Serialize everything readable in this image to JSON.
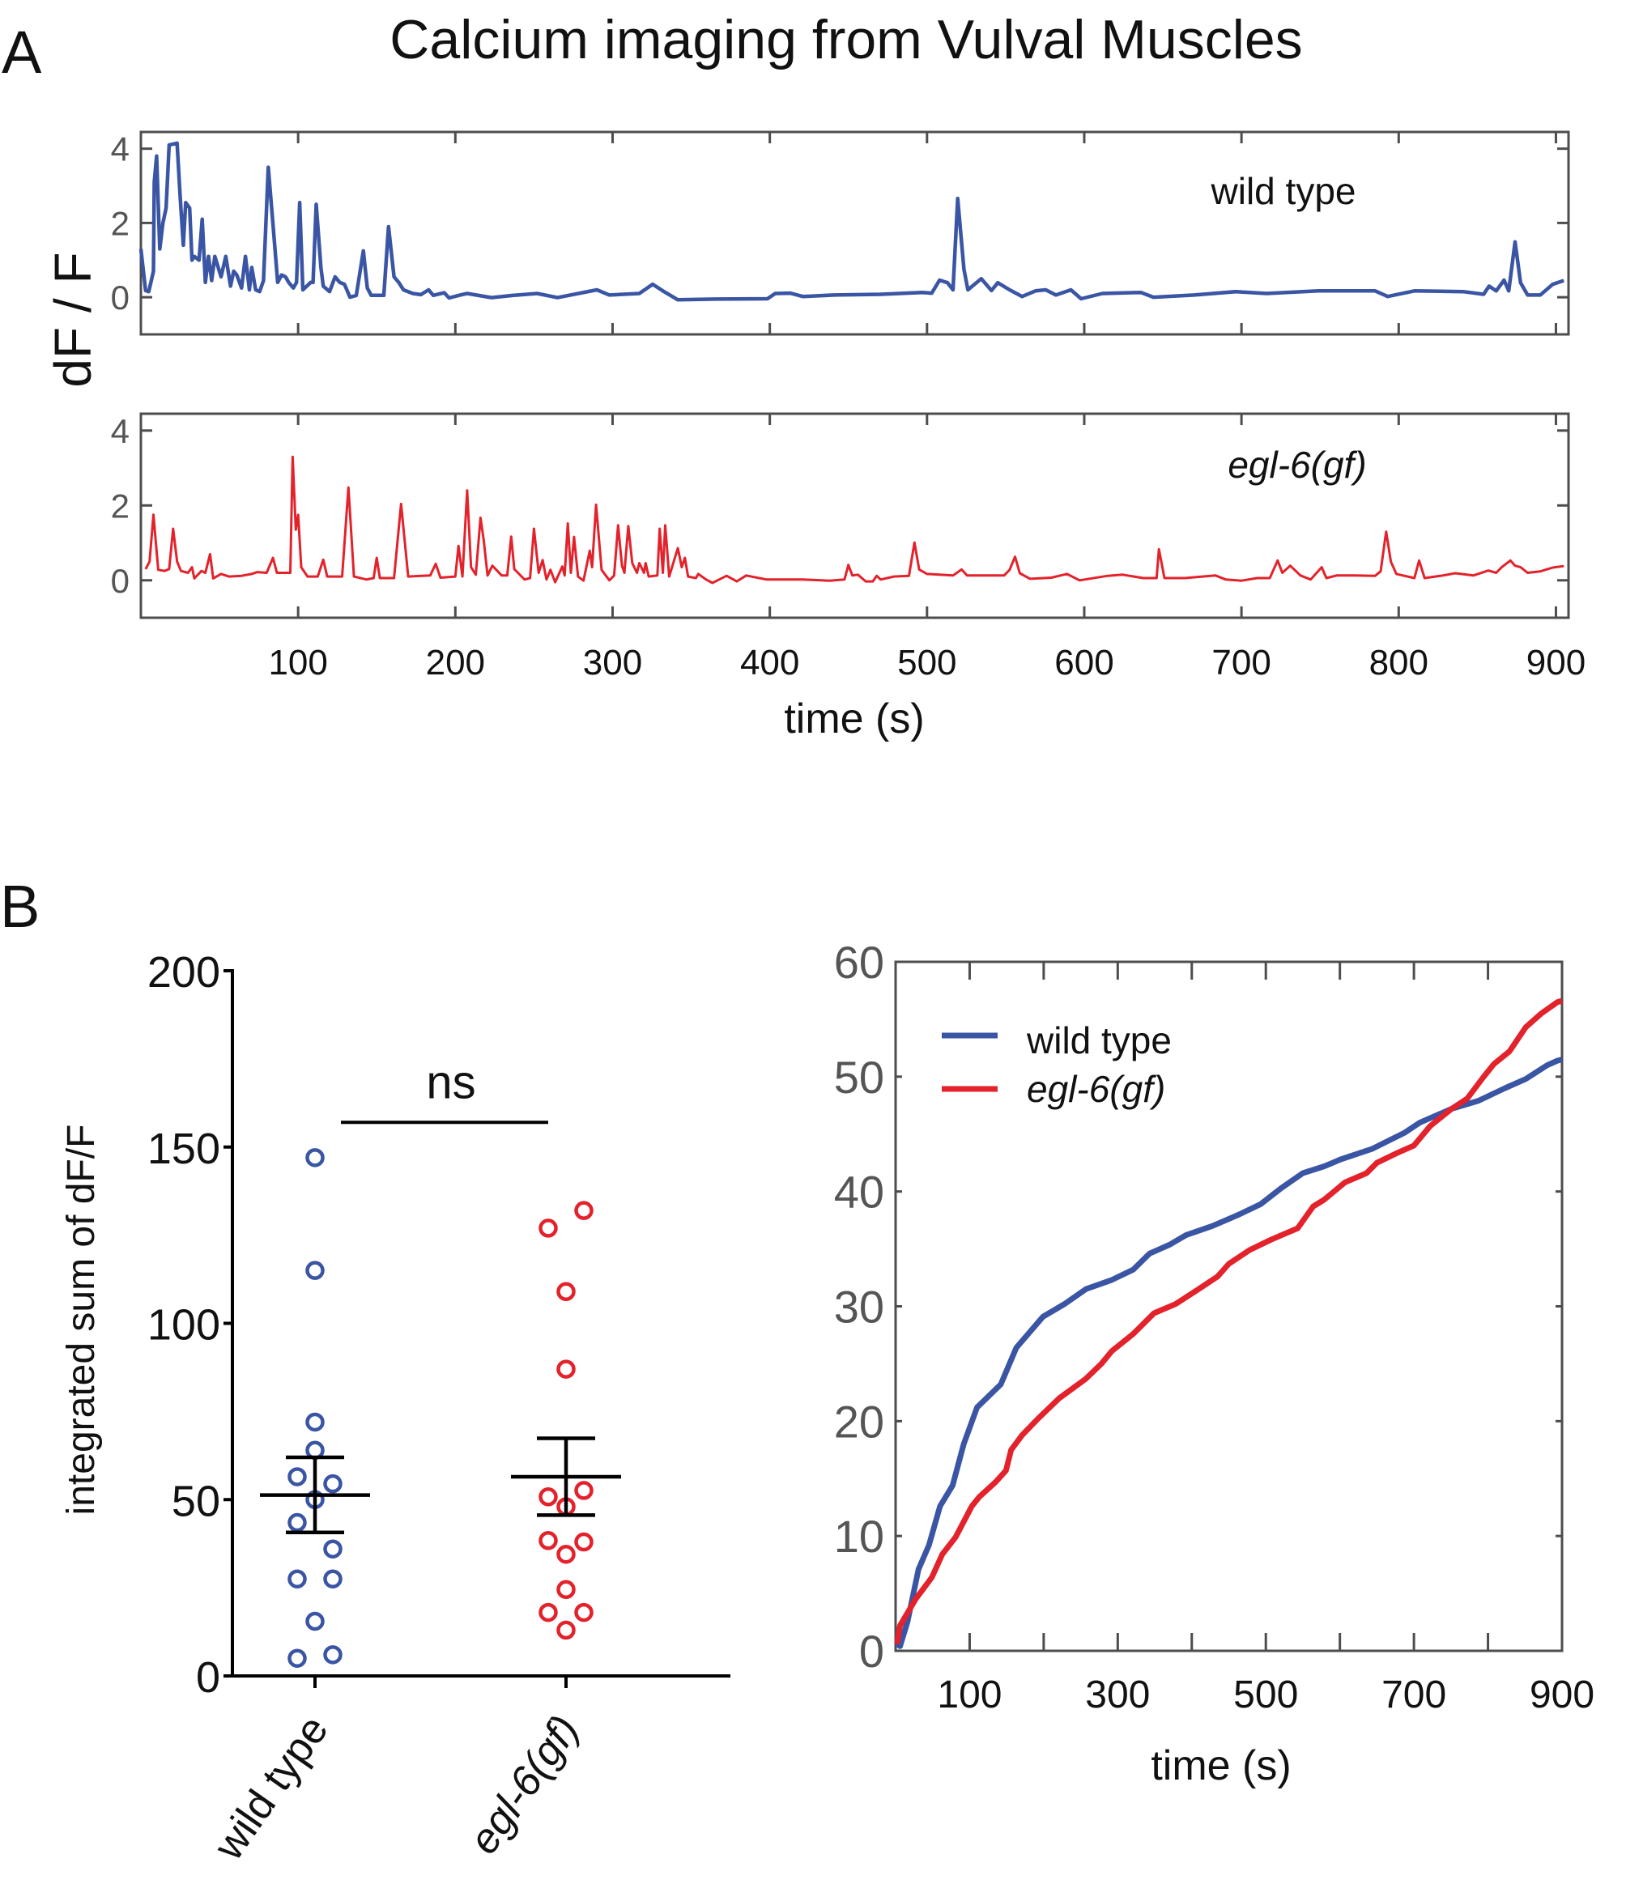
{
  "figure": {
    "panel_a_letter": "A",
    "panel_b_letter": "B",
    "title": "Calcium imaging from Vulval Muscles"
  },
  "colors": {
    "wild_type": "#3a55a4",
    "egl6": "#e3222b",
    "axis": "#4d4d4d",
    "text": "#111111"
  },
  "chart_data": [
    {
      "id": "panel-a-wild-type",
      "type": "line",
      "title": "",
      "annotation": "wild type",
      "ylabel": "dF / F",
      "xlabel": "",
      "xlim": [
        0,
        908
      ],
      "ylim": [
        -1,
        4.45
      ],
      "yticks": [
        0,
        2,
        4
      ],
      "xticks": [
        100,
        200,
        300,
        400,
        500,
        600,
        700,
        800,
        900
      ],
      "xtick_labels_shown": false,
      "grid": false,
      "series": [
        {
          "name": "wild type",
          "x": [
            0,
            3,
            5,
            8,
            8.5,
            10,
            12,
            14,
            16,
            18,
            23,
            25,
            27,
            28.5,
            31,
            32.5,
            34,
            37,
            39,
            41,
            43,
            45,
            47,
            51,
            54,
            57,
            59,
            61,
            64,
            66.5,
            69,
            70.5,
            73,
            75.5,
            78,
            81,
            84.5,
            87,
            89.5,
            92,
            94,
            97,
            99,
            101,
            103,
            108,
            109.5,
            111.5,
            114.5,
            116,
            120,
            123.5,
            126.5,
            129.5,
            133,
            137,
            141.5,
            144,
            146.5,
            151,
            154.5,
            157.5,
            161,
            164,
            167,
            173,
            178,
            183,
            186,
            193,
            196,
            203,
            207.5,
            223,
            237,
            252,
            265,
            290,
            298,
            317,
            325.5,
            332,
            341.5,
            366,
            398.5,
            403.5,
            413,
            421,
            441,
            470.5,
            497,
            503,
            508,
            513,
            516.5,
            519.5,
            523.5,
            526,
            534.5,
            541,
            545,
            552.5,
            560.5,
            569,
            575.5,
            582,
            591.5,
            598,
            611.5,
            636,
            644,
            670,
            696.5,
            716,
            749,
            785,
            793,
            810,
            841,
            854,
            857.5,
            862,
            867,
            870,
            874,
            877.5,
            882,
            890,
            898,
            905
          ],
          "y": [
            1.3,
            0.18,
            0.15,
            0.7,
            3.1,
            3.8,
            1.3,
            2.0,
            2.4,
            4.1,
            4.15,
            2.7,
            1.4,
            2.55,
            2.4,
            1.0,
            1.1,
            1.0,
            2.1,
            0.4,
            1.1,
            0.45,
            1.1,
            0.55,
            1.1,
            0.3,
            0.7,
            0.6,
            0.25,
            1.1,
            0.2,
            0.8,
            0.2,
            0.15,
            0.45,
            3.5,
            1.7,
            0.4,
            0.6,
            0.55,
            0.4,
            0.25,
            0.4,
            2.55,
            0.2,
            0.4,
            0.4,
            2.5,
            0.8,
            0.3,
            0.15,
            0.55,
            0.4,
            0.35,
            0.0,
            0.05,
            1.25,
            0.25,
            0.05,
            0.05,
            0.05,
            1.9,
            0.55,
            0.4,
            0.2,
            0.1,
            0.07,
            0.2,
            0.05,
            0.12,
            -0.02,
            0.06,
            0.1,
            -0.01,
            0.05,
            0.1,
            -0.01,
            0.2,
            0.06,
            0.1,
            0.35,
            0.17,
            -0.07,
            -0.05,
            -0.04,
            0.1,
            0.11,
            0.02,
            0.06,
            0.08,
            0.13,
            0.11,
            0.46,
            0.39,
            0.2,
            2.66,
            0.75,
            0.2,
            0.5,
            0.18,
            0.39,
            0.2,
            0.02,
            0.17,
            0.2,
            0.06,
            0.2,
            -0.04,
            0.1,
            0.13,
            0.0,
            0.06,
            0.15,
            0.1,
            0.17,
            0.17,
            0.02,
            0.17,
            0.15,
            0.08,
            0.3,
            0.17,
            0.46,
            0.17,
            1.49,
            0.39,
            0.06,
            0.06,
            0.35,
            0.45
          ]
        }
      ]
    },
    {
      "id": "panel-a-egl6",
      "type": "line",
      "title": "",
      "annotation": "egl-6(gf)",
      "ylabel": "dF / F",
      "xlabel": "time (s)",
      "xlim": [
        0,
        908
      ],
      "ylim": [
        -1,
        4.45
      ],
      "yticks": [
        0,
        2,
        4
      ],
      "xticks": [
        100,
        200,
        300,
        400,
        500,
        600,
        700,
        800,
        900
      ],
      "xtick_labels": [
        "100",
        "200",
        "300",
        "400",
        "500",
        "600",
        "700",
        "800",
        "900"
      ],
      "grid": false,
      "series": [
        {
          "name": "egl-6(gf)",
          "x": [
            3,
            5.5,
            8,
            11,
            15,
            18,
            20.5,
            23,
            25.5,
            30,
            32.5,
            34,
            38.5,
            41,
            44,
            46,
            51,
            56,
            64,
            70.5,
            74,
            80,
            84,
            86.5,
            95,
            96.5,
            98.5,
            100,
            102,
            106,
            112.5,
            116,
            118.5,
            128,
            132,
            135.5,
            143.5,
            148,
            150,
            152,
            161,
            165.5,
            170,
            184,
            187.5,
            190.5,
            200,
            202,
            204.5,
            207.5,
            210,
            213,
            216,
            218,
            220.5,
            223.5,
            229.5,
            233,
            235.5,
            237.5,
            244,
            247.5,
            250,
            253,
            255.5,
            258,
            260.5,
            263.5,
            268,
            269.5,
            271.5,
            273.5,
            275.5,
            278,
            281.5,
            285.5,
            287,
            289.5,
            293,
            298,
            301,
            303.5,
            306,
            307.5,
            310,
            312.5,
            315.5,
            317,
            320,
            321,
            323,
            328.5,
            330,
            332,
            333.5,
            336,
            341.5,
            344,
            346,
            348,
            353,
            354.5,
            359.5,
            363.5,
            372.5,
            379,
            385,
            398,
            411,
            421,
            438,
            447.5,
            450,
            452.5,
            456,
            461,
            465.5,
            468,
            470.5,
            479,
            488.5,
            492,
            495,
            500,
            516.5,
            522,
            525.5,
            549,
            552.5,
            556,
            559,
            565.5,
            579,
            589,
            597,
            615,
            624.5,
            637.5,
            646,
            647.5,
            651,
            664,
            683.5,
            690,
            700,
            710,
            718,
            723,
            726,
            731,
            737.5,
            744,
            751,
            754,
            760.5,
            772,
            785,
            788.5,
            792,
            795,
            798.5,
            810,
            813,
            816.5,
            828,
            836,
            847.5,
            857,
            862,
            865.5,
            871,
            874,
            877.5,
            882,
            890,
            898,
            905
          ],
          "y": [
            0.3,
            0.5,
            1.75,
            0.28,
            0.25,
            0.3,
            1.38,
            0.5,
            0.25,
            0.2,
            0.35,
            0.05,
            0.25,
            0.2,
            0.7,
            0.05,
            0.17,
            0.1,
            0.12,
            0.17,
            0.22,
            0.2,
            0.6,
            0.2,
            0.2,
            3.3,
            1.35,
            1.75,
            0.35,
            0.1,
            0.1,
            0.55,
            0.1,
            0.1,
            2.48,
            0.1,
            0.02,
            0.06,
            0.6,
            0.06,
            0.06,
            2.04,
            0.1,
            0.13,
            0.44,
            0.07,
            0.1,
            0.92,
            0.1,
            2.4,
            0.35,
            0.15,
            1.67,
            1.08,
            0.13,
            0.39,
            0.13,
            0.13,
            1.17,
            0.3,
            0.02,
            0.06,
            1.38,
            0.2,
            0.54,
            0.02,
            0.28,
            -0.05,
            0.37,
            0.13,
            1.52,
            0.2,
            1.16,
            0.1,
            -0.01,
            0.79,
            0.35,
            2.02,
            0.28,
            0.0,
            0.13,
            1.47,
            0.39,
            0.2,
            1.45,
            0.46,
            0.2,
            0.46,
            0.2,
            0.46,
            0.1,
            0.13,
            1.38,
            0.2,
            1.47,
            0.1,
            0.86,
            0.35,
            0.6,
            0.1,
            0.06,
            0.17,
            0.02,
            -0.07,
            0.12,
            -0.03,
            0.13,
            0.02,
            0.02,
            0.02,
            -0.01,
            0.02,
            0.41,
            0.13,
            0.15,
            -0.03,
            -0.03,
            0.12,
            0.02,
            0.1,
            0.12,
            1.01,
            0.29,
            0.17,
            0.13,
            0.29,
            0.13,
            0.13,
            0.28,
            0.63,
            0.19,
            0.04,
            0.07,
            0.17,
            0.0,
            0.12,
            0.15,
            0.06,
            0.06,
            0.83,
            0.06,
            0.06,
            0.13,
            0.02,
            -0.01,
            0.06,
            0.06,
            0.53,
            0.2,
            0.39,
            0.13,
            0.02,
            0.35,
            0.06,
            0.13,
            0.13,
            0.12,
            0.24,
            1.3,
            0.5,
            0.17,
            0.06,
            0.53,
            0.06,
            0.13,
            0.19,
            0.13,
            0.26,
            0.2,
            0.35,
            0.53,
            0.39,
            0.35,
            0.2,
            0.24,
            0.34,
            0.38
          ]
        }
      ]
    },
    {
      "id": "panel-b-scatter",
      "type": "scatter",
      "title": "",
      "ylabel": "integrated sum of dF/F",
      "xlabel": "",
      "categories": [
        "wild type",
        "egl-6(gf)"
      ],
      "category_styles": [
        "normal",
        "italic"
      ],
      "ylim": [
        0,
        200
      ],
      "yticks": [
        0,
        50,
        100,
        150,
        200
      ],
      "grid": false,
      "significance": {
        "label": "ns",
        "between": [
          "wild type",
          "egl-6(gf)"
        ],
        "y": 157
      },
      "series": [
        {
          "name": "wild type",
          "values": [
            147,
            115,
            72,
            64,
            56.5,
            54.5,
            50,
            43.5,
            36,
            27.5,
            27.5,
            15.5,
            6,
            5
          ],
          "jitter": [
            0,
            0,
            0,
            0,
            -1,
            1,
            0,
            -1,
            1,
            -1,
            1,
            0,
            1,
            -1
          ],
          "mean": 51.3,
          "sem_upper": 62,
          "sem_lower": 40.7
        },
        {
          "name": "egl-6(gf)",
          "values": [
            132,
            127,
            109,
            87,
            52.6,
            50.8,
            48,
            38.4,
            38,
            34.5,
            24.5,
            18,
            18,
            13
          ],
          "jitter": [
            1,
            -1,
            0,
            0,
            1,
            -1,
            0,
            -1,
            1,
            0,
            0,
            -1,
            1,
            0
          ],
          "mean": 56.5,
          "sem_upper": 67.4,
          "sem_lower": 45.6
        }
      ]
    },
    {
      "id": "panel-b-cumulative",
      "type": "line",
      "title": "",
      "xlabel": "time (s)",
      "ylabel": "",
      "xlim": [
        0,
        900
      ],
      "ylim": [
        0,
        60
      ],
      "yticks": [
        0,
        10,
        20,
        30,
        40,
        50,
        60
      ],
      "xticks": [
        100,
        200,
        300,
        400,
        500,
        600,
        700,
        800
      ],
      "xtick_labels": [
        "100",
        "300",
        "500",
        "700",
        "900"
      ],
      "xtick_label_values": [
        100,
        300,
        500,
        700,
        900
      ],
      "legend": "top-left",
      "grid": false,
      "series": [
        {
          "name": "wild type",
          "x": [
            2,
            6,
            16,
            31,
            45,
            60,
            77,
            92,
            110,
            142,
            163,
            199,
            228,
            257,
            292,
            321,
            343,
            371,
            392,
            428,
            464,
            493,
            521,
            550,
            579,
            601,
            643,
            687,
            708,
            751,
            787,
            823,
            851,
            880,
            894,
            900
          ],
          "y": [
            0.6,
            0.4,
            2.5,
            7.1,
            9.2,
            12.6,
            14.4,
            18.0,
            21.2,
            23.2,
            26.4,
            29.1,
            30.2,
            31.5,
            32.3,
            33.2,
            34.6,
            35.4,
            36.2,
            37.0,
            38.0,
            38.9,
            40.3,
            41.6,
            42.2,
            42.8,
            43.7,
            45.1,
            46.0,
            47.2,
            47.9,
            49.0,
            49.8,
            51.0,
            51.4,
            51.5
          ]
        },
        {
          "name": "egl-6(gf)",
          "x": [
            2,
            6,
            27,
            49,
            63,
            81,
            103,
            113,
            135,
            149,
            156,
            171,
            192,
            221,
            257,
            278,
            292,
            321,
            349,
            378,
            407,
            435,
            450,
            478,
            507,
            543,
            564,
            579,
            607,
            636,
            650,
            679,
            700,
            722,
            751,
            772,
            793,
            808,
            829,
            851,
            872,
            894,
            900
          ],
          "y": [
            0.6,
            2.2,
            4.5,
            6.4,
            8.4,
            9.9,
            12.6,
            13.4,
            14.7,
            15.7,
            17.5,
            18.8,
            20.2,
            22.0,
            23.7,
            25.0,
            26.1,
            27.6,
            29.4,
            30.2,
            31.4,
            32.6,
            33.7,
            34.9,
            35.8,
            36.8,
            38.7,
            39.3,
            40.8,
            41.6,
            42.5,
            43.4,
            44.0,
            45.7,
            47.2,
            48.1,
            49.9,
            51.1,
            52.2,
            54.3,
            55.5,
            56.5,
            56.6
          ]
        }
      ]
    }
  ]
}
